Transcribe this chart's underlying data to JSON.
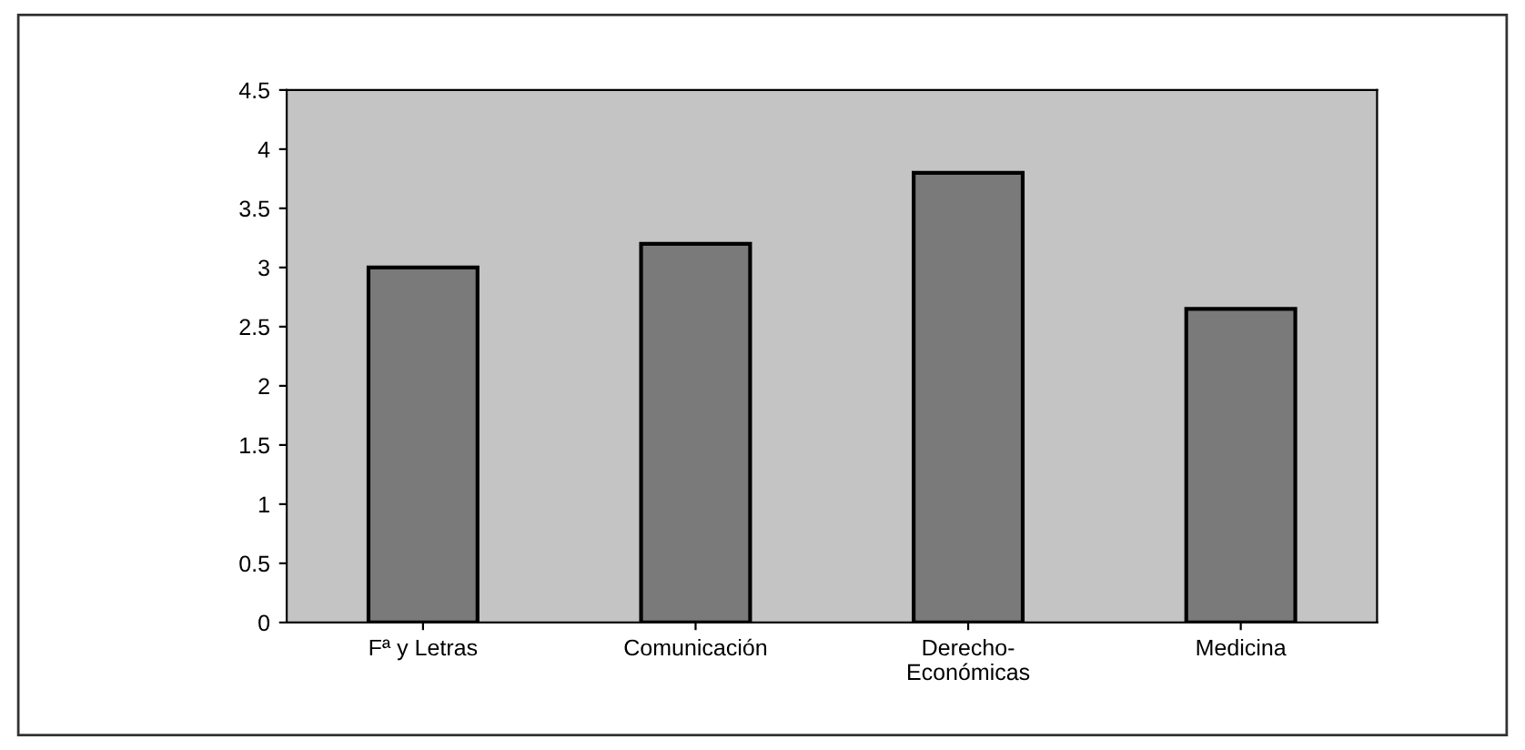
{
  "chart_data": {
    "type": "bar",
    "categories": [
      "Fª y Letras",
      "Comunicación",
      "Derecho-\nEconómicas",
      "Medicina"
    ],
    "values": [
      3.0,
      3.2,
      3.8,
      2.65
    ],
    "color": "#7a7a7a",
    "ylim": [
      0,
      4.5
    ],
    "yticks": [
      0,
      0.5,
      1,
      1.5,
      2,
      2.5,
      3,
      3.5,
      4,
      4.5
    ],
    "grid": false
  }
}
